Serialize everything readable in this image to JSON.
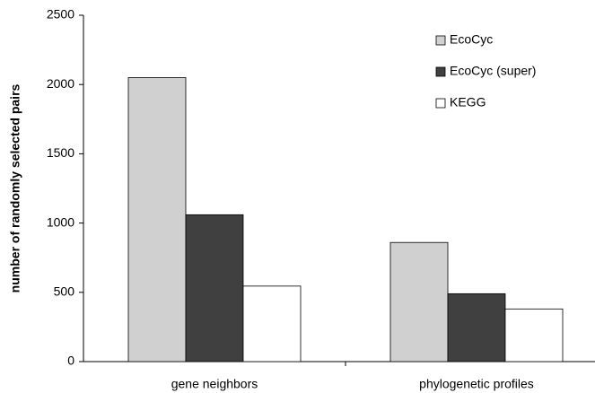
{
  "chart_data": {
    "type": "bar",
    "y_label": "number of randomly selected pairs",
    "categories": [
      "gene neighbors",
      "phylogenetic profiles"
    ],
    "series": [
      {
        "name": "EcoCyc",
        "color": "#d0d0d0",
        "values": [
          2050,
          860
        ]
      },
      {
        "name": "EcoCyc (super)",
        "color": "#404040",
        "values": [
          1060,
          490
        ]
      },
      {
        "name": "KEGG",
        "color": "#ffffff",
        "values": [
          545,
          380
        ]
      }
    ],
    "ylim": [
      0,
      2500
    ],
    "yticks": [
      0,
      500,
      1000,
      1500,
      2000,
      2500
    ],
    "legend": "top-right"
  }
}
